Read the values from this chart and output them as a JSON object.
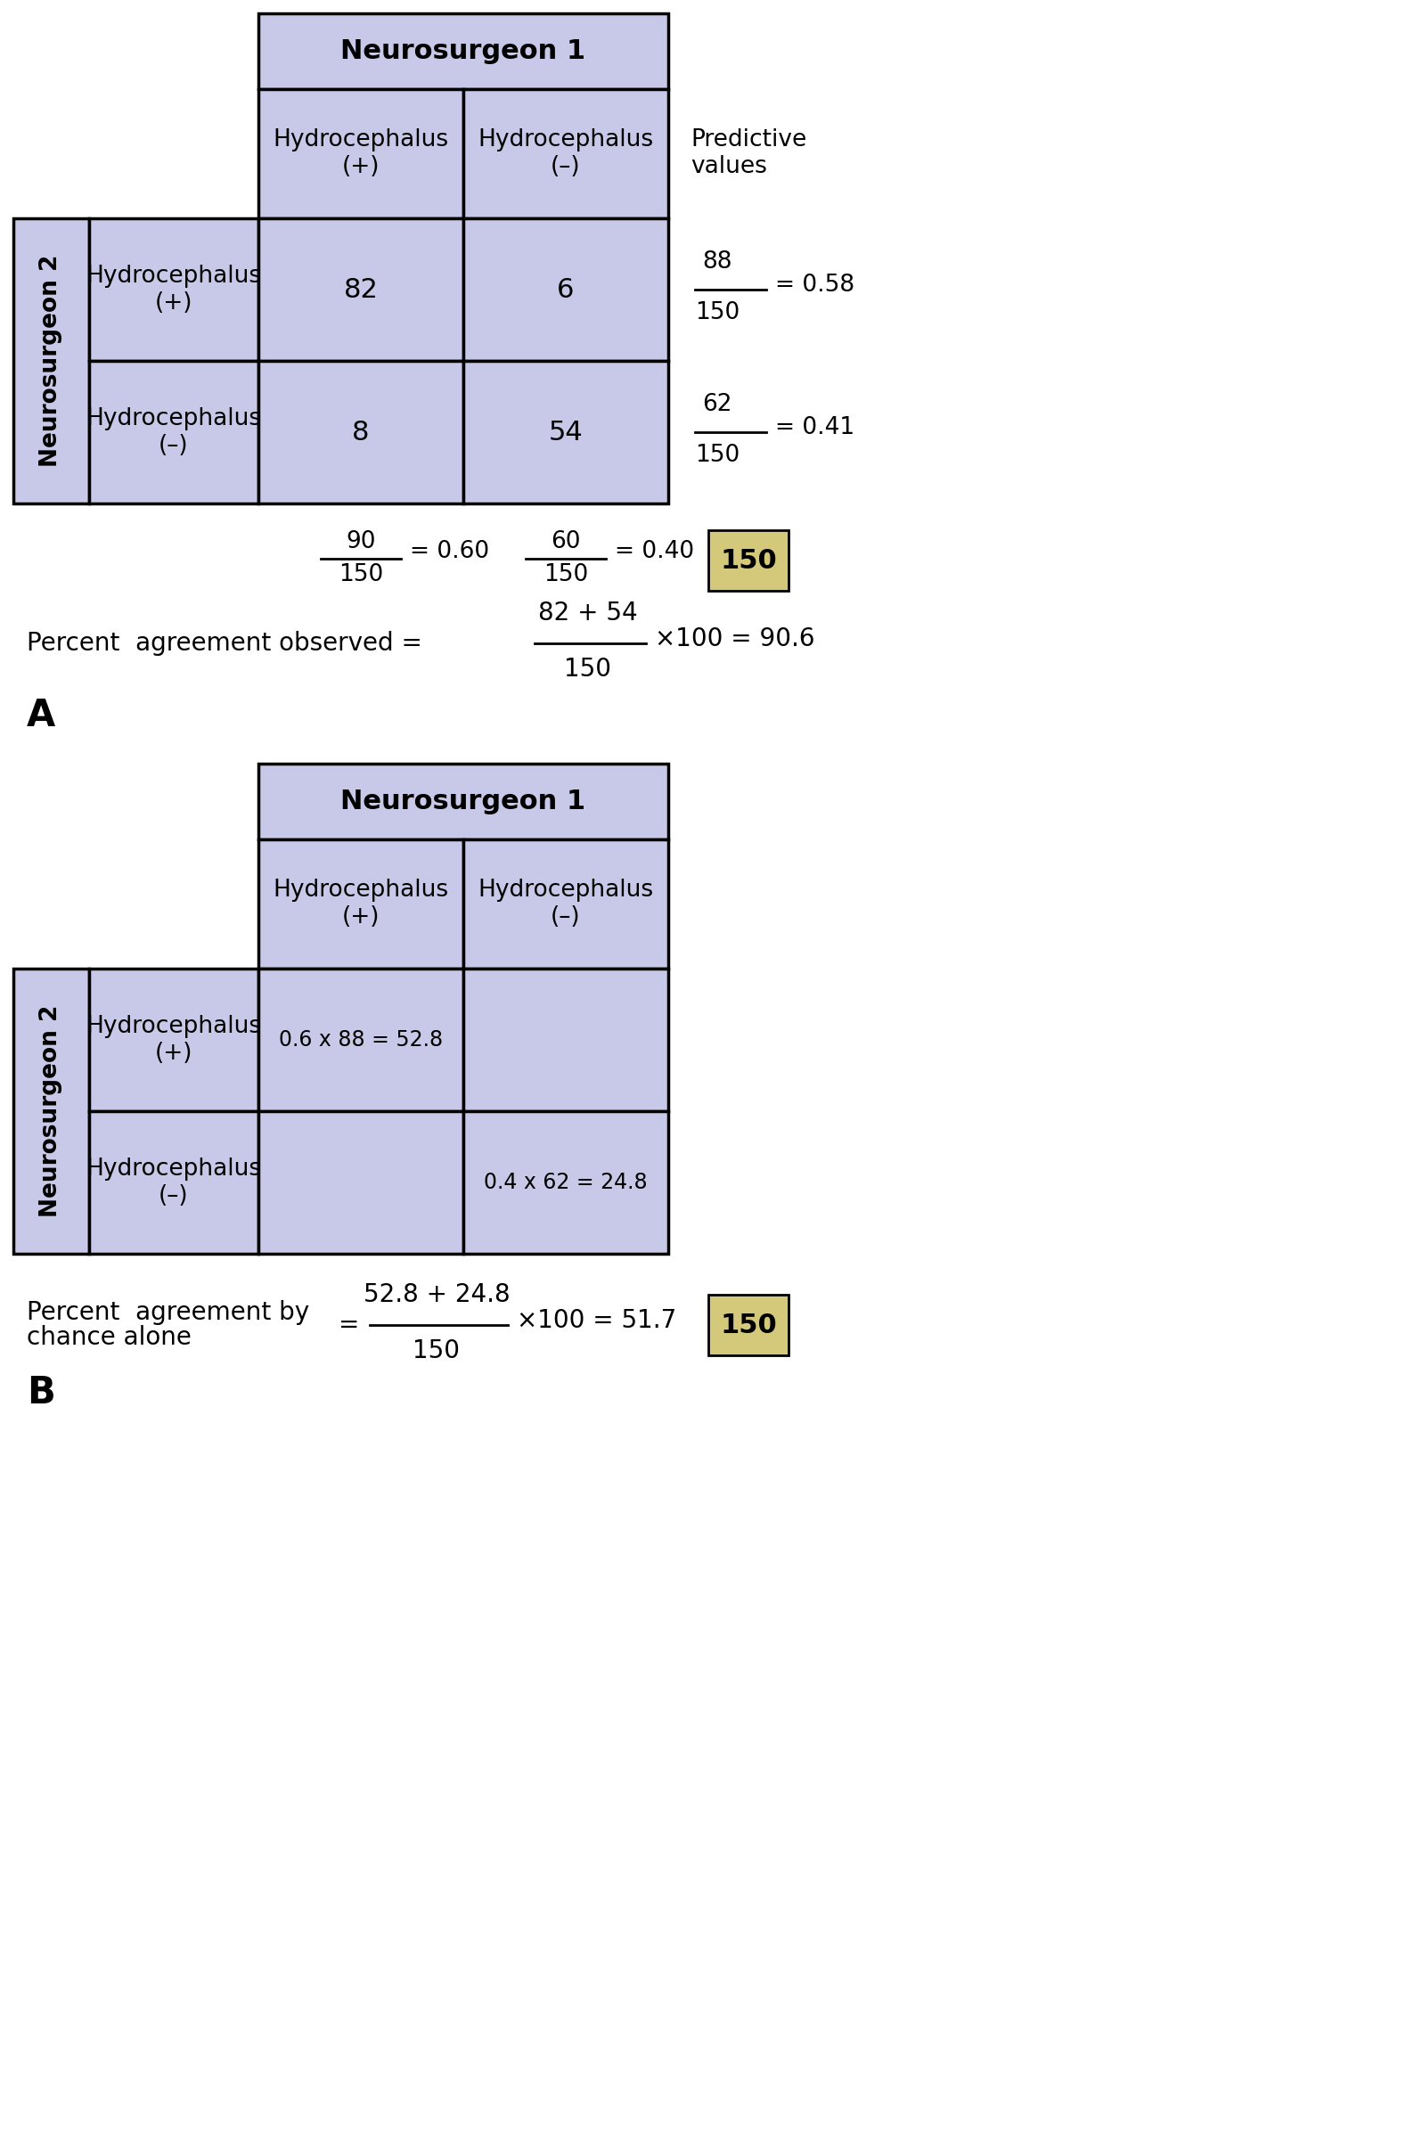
{
  "table_bg": "#c8c8e8",
  "table_border": "#000000",
  "white_bg": "#ffffff",
  "highlight_bg": "#d4c87a",
  "neuro1_header": "Neurosurgeon 1",
  "neuro2_header": "Neurosurgeon 2",
  "col_headers": [
    "Hydrocephalus\n(+)",
    "Hydrocephalus\n(–)"
  ],
  "row_headers": [
    "Hydrocephalus\n(+)",
    "Hydrocephalus\n(–)"
  ],
  "predictive_values_label": "Predictive\nvalues",
  "tableA_data": [
    [
      82,
      6
    ],
    [
      8,
      54
    ]
  ],
  "tableA_total": "150",
  "tableA_label": "A",
  "tableB_data_cells": [
    [
      "0.6 x 88 = 52.8",
      ""
    ],
    [
      "",
      "0.4 x 62 = 24.8"
    ]
  ],
  "tableB_total": "150",
  "tableB_label": "B",
  "title_fontsize": 22,
  "header_fontsize": 19,
  "data_fontsize": 22,
  "formula_fontsize": 20,
  "pv_fontsize": 19,
  "label_fontsize": 30
}
